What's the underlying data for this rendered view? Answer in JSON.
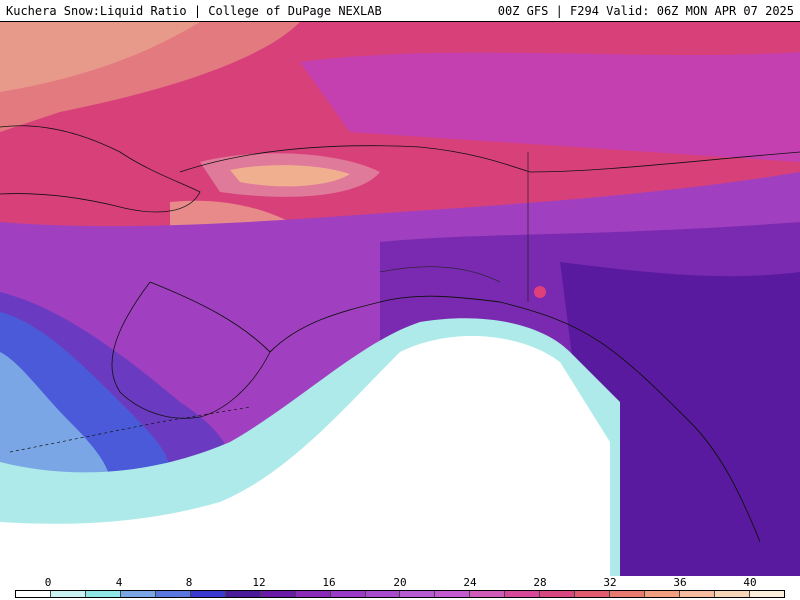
{
  "header": {
    "title_left": "Kuchera Snow:Liquid Ratio | College of DuPage NEXLAB",
    "title_right": "00Z GFS | F294 Valid: 06Z MON APR 07 2025"
  },
  "legend": {
    "ticks": [
      "0",
      "4",
      "8",
      "12",
      "16",
      "20",
      "24",
      "28",
      "32",
      "36",
      "40"
    ],
    "colors": [
      "#ffffff",
      "#c9f3f3",
      "#8fe6e6",
      "#7aa6e6",
      "#5a78e0",
      "#3a3ad0",
      "#4a1a9a",
      "#6a1aa8",
      "#8a2ab8",
      "#9a3ac6",
      "#a84acc",
      "#b85ad2",
      "#c45ad0",
      "#d05ab8",
      "#d8489a",
      "#d84880",
      "#e05a70",
      "#e87a70",
      "#f0a080",
      "#f5bca0",
      "#f8d6b8",
      "#fbeedc"
    ],
    "colors_note_unused": ""
  },
  "map": {
    "colors": {
      "ocean": "#ffffff",
      "low_cyan": "#aeeaea",
      "blue": "#4a5ad8",
      "purple": "#7a2ab0",
      "magenta": "#c440b8",
      "pink": "#d8407a",
      "salmon": "#e8a080",
      "coast": "#111111"
    }
  }
}
